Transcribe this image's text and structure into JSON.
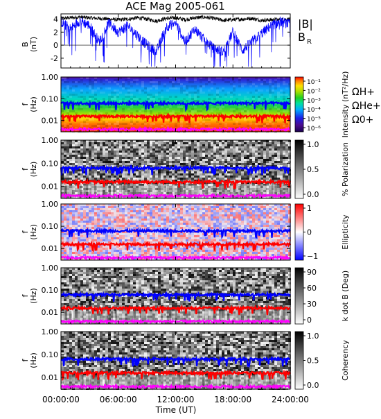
{
  "title": "ACE Mag 2005-061",
  "x_axis": {
    "label": "Time (UT)",
    "ticks": [
      "00:00:00",
      "06:00:00",
      "12:00:00",
      "18:00:00",
      "24:00:00"
    ],
    "range_hours": [
      0,
      24
    ]
  },
  "freq_axis": {
    "label_f": "f",
    "label_unit": "(Hz)",
    "ticks": [
      "1.00",
      "0.10",
      "0.01"
    ],
    "scale": "log",
    "range_hz": [
      0.003,
      1.0
    ]
  },
  "gyro_labels": {
    "h": "ΩH+",
    "he": "ΩHe+",
    "o": "Ω0+"
  },
  "chart_data": [
    {
      "type": "line",
      "panel": "magnetic-field",
      "ylabel": "B (nT)",
      "ylim": [
        -3.5,
        4.8
      ],
      "yticks": [
        "4",
        "2",
        "0",
        "-2"
      ],
      "legend": [
        "|B|",
        "B_R"
      ],
      "series": [
        {
          "name": "|B|",
          "color": "#000000",
          "x_hours": [
            0,
            1,
            2,
            3,
            4,
            5,
            6,
            7,
            8,
            9,
            10,
            11,
            12,
            13,
            14,
            15,
            16,
            17,
            18,
            19,
            20,
            21,
            22,
            23,
            24
          ],
          "values": [
            4.1,
            4.2,
            4.3,
            4.2,
            4.1,
            4.0,
            3.9,
            4.0,
            4.2,
            4.0,
            3.7,
            4.1,
            4.2,
            3.9,
            4.2,
            4.3,
            4.1,
            3.8,
            3.9,
            4.0,
            4.1,
            3.8,
            3.9,
            3.9,
            4.0
          ]
        },
        {
          "name": "B_R",
          "color": "#0000ff",
          "x_hours": [
            0,
            1,
            2,
            3,
            4,
            5,
            6,
            7,
            8,
            9,
            10,
            11,
            12,
            13,
            14,
            15,
            16,
            17,
            18,
            19,
            20,
            21,
            22,
            23,
            24
          ],
          "values": [
            3.6,
            2.5,
            3.8,
            3.0,
            0.5,
            3.4,
            2.0,
            3.0,
            1.5,
            0.0,
            -1.0,
            2.8,
            3.4,
            0.5,
            2.5,
            0.8,
            -0.5,
            -1.0,
            2.0,
            -0.8,
            0.5,
            1.8,
            3.0,
            3.6,
            3.2
          ]
        }
      ]
    },
    {
      "type": "heatmap",
      "panel": "intensity",
      "colorbar_label": "Intensity (nT²/Hz)",
      "colorbar_ticks": [
        "10⁻¹",
        "10⁻²",
        "10⁻³",
        "10⁻⁴",
        "10⁻⁵",
        "10⁻⁶"
      ],
      "colormap": "rainbow",
      "zlim_log10": [
        -6.5,
        0
      ]
    },
    {
      "type": "heatmap",
      "panel": "polarization",
      "colorbar_label": "% Polarization",
      "colorbar_ticks": [
        "1.0",
        "0.5",
        "0.0"
      ],
      "colormap": "grey",
      "zlim": [
        0,
        1
      ]
    },
    {
      "type": "heatmap",
      "panel": "ellipticity",
      "colorbar_label": "Ellipticity",
      "colorbar_ticks": [
        "1",
        "0",
        "−1"
      ],
      "colormap": "blue-white-red",
      "zlim": [
        -1,
        1
      ]
    },
    {
      "type": "heatmap",
      "panel": "wave-normal-angle",
      "colorbar_label": "k dot B (Deg)",
      "colorbar_ticks": [
        "90",
        "60",
        "30",
        "0"
      ],
      "colormap": "grey",
      "zlim": [
        0,
        90
      ]
    },
    {
      "type": "heatmap",
      "panel": "coherency",
      "colorbar_label": "Coherency",
      "colorbar_ticks": [
        "1.0",
        "0.5",
        "0.0"
      ],
      "colormap": "grey",
      "zlim": [
        0,
        1
      ]
    },
    {
      "type": "line",
      "panel": "gyrofrequency-overlays",
      "note_units": "Hz",
      "series": [
        {
          "name": "ΩH+",
          "color": "#0000ff",
          "level_hz": 0.062
        },
        {
          "name": "ΩHe+",
          "color": "#ff0000",
          "level_hz": 0.0155
        },
        {
          "name": "Ω0+",
          "color": "#ff00ff",
          "level_hz": 0.0039
        }
      ]
    }
  ]
}
